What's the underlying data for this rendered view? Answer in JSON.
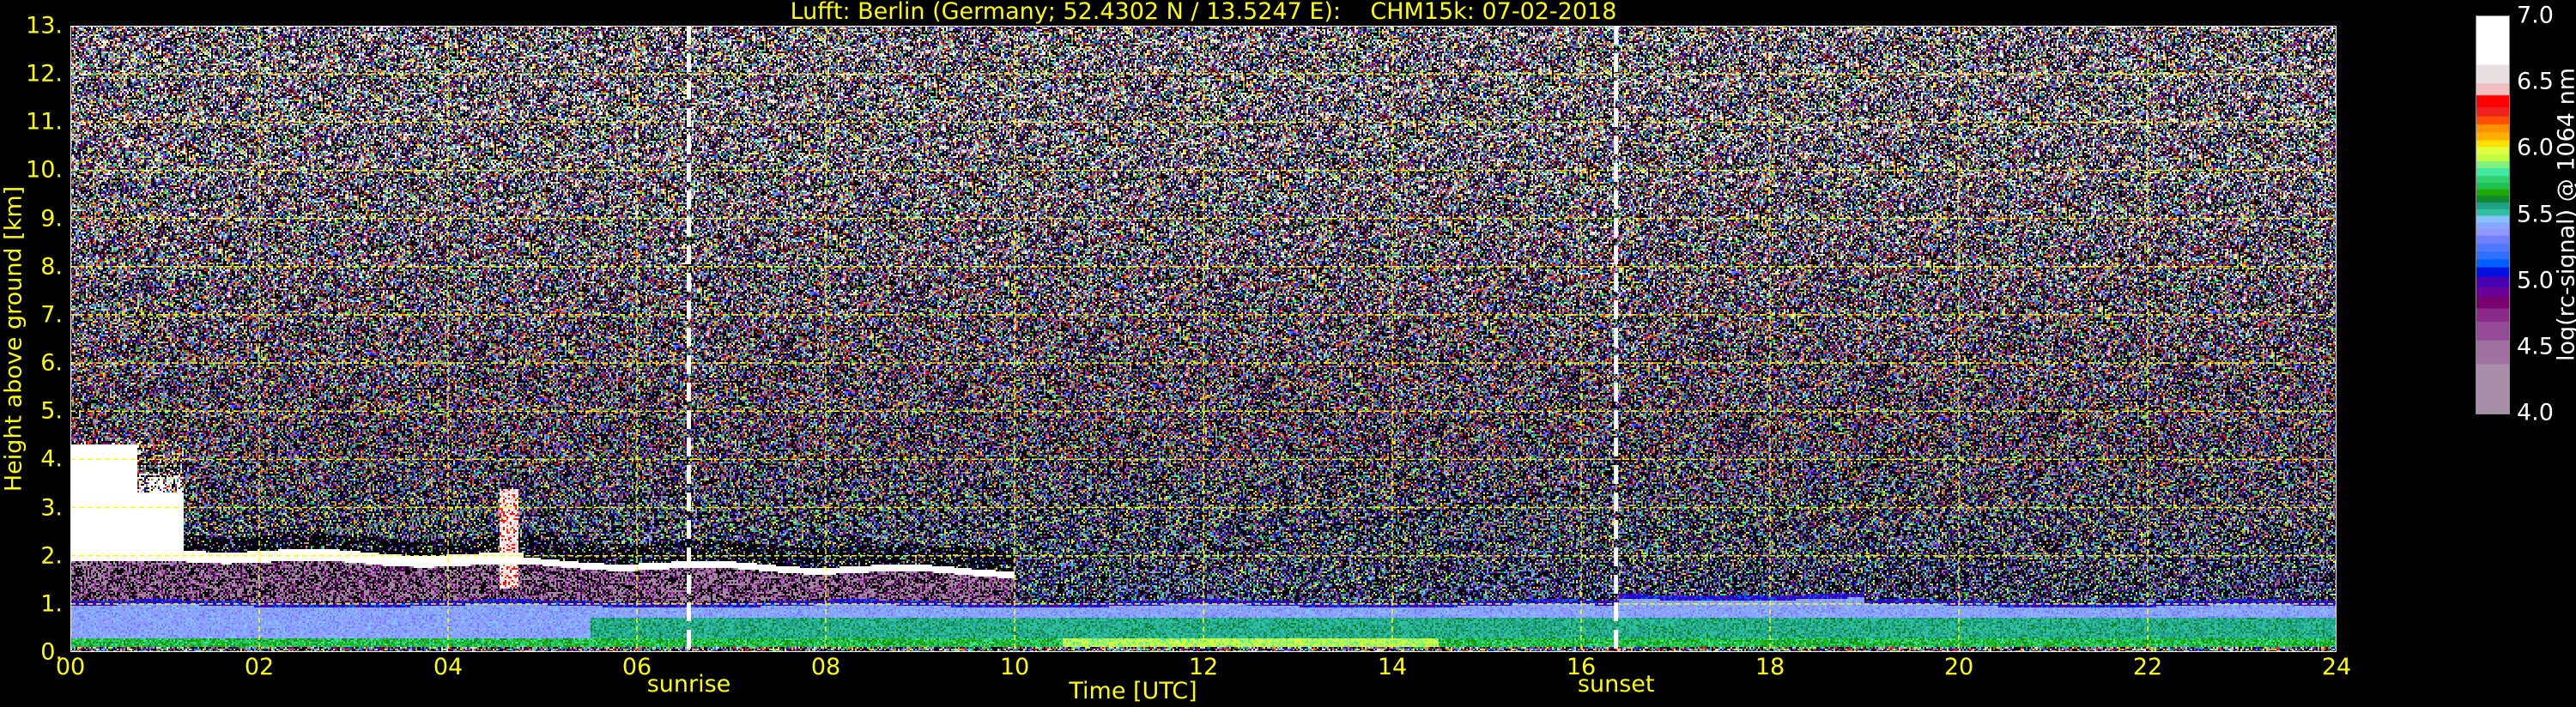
{
  "chart_data": {
    "type": "heatmap",
    "title": "Lufft: Berlin (Germany; 52.4302 N / 13.5247 E):    CHM15k: 07-02-2018",
    "xlabel": "Time [UTC]",
    "ylabel": "Height above ground [km]",
    "xlim": [
      0,
      24
    ],
    "ylim": [
      0,
      13
    ],
    "x_ticks": [
      "00",
      "02",
      "04",
      "06",
      "08",
      "10",
      "12",
      "14",
      "16",
      "18",
      "20",
      "22",
      "24"
    ],
    "y_ticks": [
      "0.",
      "1.",
      "2.",
      "3.",
      "4.",
      "5.",
      "6.",
      "7.",
      "8.",
      "9.",
      "10.",
      "11.",
      "12.",
      "13."
    ],
    "grid": true,
    "grid_color": "#ffff00",
    "background": "#000000",
    "events": [
      {
        "label": "sunrise",
        "time_utc": 6.55
      },
      {
        "label": "sunset",
        "time_utc": 16.37
      }
    ],
    "colorbar": {
      "label": "log(rc-signal) @ 1064 nm",
      "range": [
        4.0,
        7.0
      ],
      "ticks": [
        "4.0",
        "4.5",
        "5.0",
        "5.5",
        "6.0",
        "6.5",
        "7.0"
      ],
      "bands": [
        {
          "from": 4.0,
          "color": "#a88fa8"
        },
        {
          "from": 4.38,
          "color": "#a070a0"
        },
        {
          "from": 4.56,
          "color": "#944a94"
        },
        {
          "from": 4.7,
          "color": "#8a2a8a"
        },
        {
          "from": 4.8,
          "color": "#780070"
        },
        {
          "from": 4.89,
          "color": "#6a0098"
        },
        {
          "from": 4.96,
          "color": "#4800b0"
        },
        {
          "from": 5.04,
          "color": "#0010e0"
        },
        {
          "from": 5.11,
          "color": "#0060ff"
        },
        {
          "from": 5.17,
          "color": "#3070ff"
        },
        {
          "from": 5.23,
          "color": "#5078ff"
        },
        {
          "from": 5.29,
          "color": "#7080ff"
        },
        {
          "from": 5.35,
          "color": "#9098ff"
        },
        {
          "from": 5.4,
          "color": "#88a8ff"
        },
        {
          "from": 5.45,
          "color": "#88c0ff"
        },
        {
          "from": 5.5,
          "color": "#30c0a0"
        },
        {
          "from": 5.55,
          "color": "#20a088"
        },
        {
          "from": 5.6,
          "color": "#108830"
        },
        {
          "from": 5.65,
          "color": "#20a800"
        },
        {
          "from": 5.7,
          "color": "#20c050"
        },
        {
          "from": 5.75,
          "color": "#30d070"
        },
        {
          "from": 5.8,
          "color": "#40e8a0"
        },
        {
          "from": 5.86,
          "color": "#80f080"
        },
        {
          "from": 5.91,
          "color": "#c0ff40"
        },
        {
          "from": 5.96,
          "color": "#e0ff40"
        },
        {
          "from": 6.02,
          "color": "#ffe000"
        },
        {
          "from": 6.07,
          "color": "#ffb000"
        },
        {
          "from": 6.13,
          "color": "#ff9000"
        },
        {
          "from": 6.19,
          "color": "#ff5000"
        },
        {
          "from": 6.25,
          "color": "#f02020"
        },
        {
          "from": 6.32,
          "color": "#ff0000"
        },
        {
          "from": 6.41,
          "color": "#f0c0c0"
        },
        {
          "from": 6.5,
          "color": "#e8e0e0"
        },
        {
          "from": 6.64,
          "color": "#ffffff"
        }
      ]
    },
    "features": [
      {
        "name": "cloud layer",
        "start_utc": 0.0,
        "end_utc": 10.0,
        "base_km_start": 2.0,
        "base_km_end": 1.65,
        "value": 7.0
      },
      {
        "name": "thick cloud",
        "start_utc": 0.0,
        "end_utc": 1.2,
        "base_km": 1.9,
        "top_km": 4.3,
        "value": 7.0
      },
      {
        "name": "boundary layer top",
        "height_km": 1.0,
        "value": 5.05
      },
      {
        "name": "boundary layer",
        "bottom_km": 0.3,
        "top_km": 1.0,
        "value": 5.4
      },
      {
        "name": "surface layer",
        "bottom_km": 0.1,
        "top_km": 0.3,
        "value": 5.7
      }
    ]
  }
}
